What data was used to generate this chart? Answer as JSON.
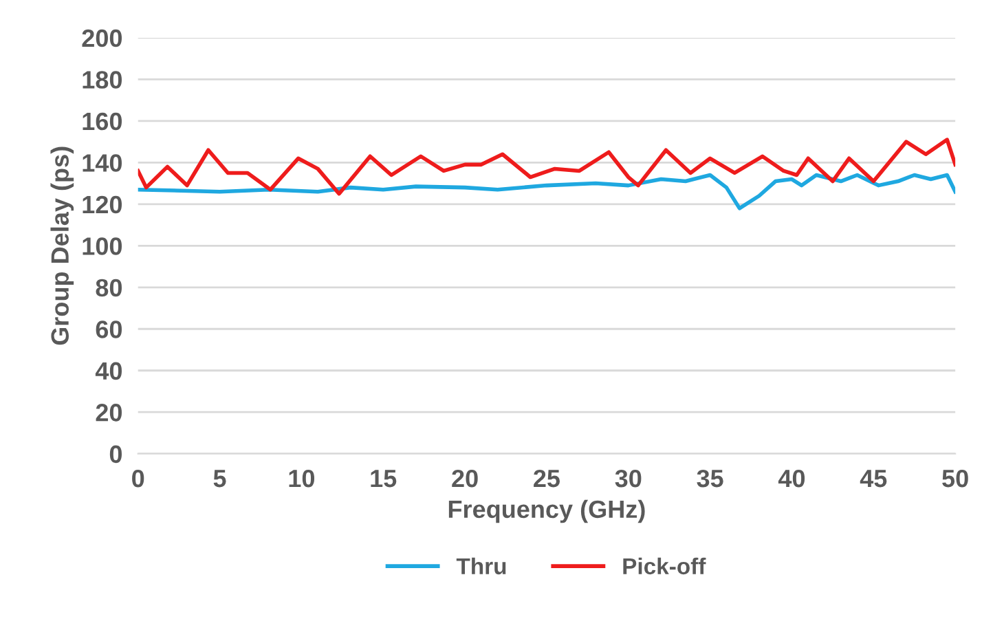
{
  "chart_data": {
    "type": "line",
    "xlabel": "Frequency (GHz)",
    "ylabel": "Group Delay (ps)",
    "xlim": [
      0,
      50
    ],
    "xticks": [
      0,
      5,
      10,
      15,
      20,
      25,
      30,
      35,
      40,
      45,
      50
    ],
    "ylim": [
      0,
      200
    ],
    "yticks": [
      0,
      20,
      40,
      60,
      80,
      100,
      120,
      140,
      160,
      180,
      200
    ],
    "grid": "y",
    "legend": "bottom",
    "marker": "none",
    "line_style": "solid",
    "series": [
      {
        "name": "Thru",
        "color": "#1fa8e0",
        "x": [
          0,
          5,
          8,
          11,
          13,
          15,
          17,
          20,
          22,
          25,
          28,
          30,
          32,
          33.5,
          35,
          36,
          36.8,
          38,
          39,
          40,
          40.6,
          41.5,
          43,
          44,
          45.3,
          46.5,
          47.5,
          48.5,
          49.5,
          50
        ],
        "values": [
          127,
          126,
          127,
          126,
          128,
          127,
          128.5,
          128,
          127,
          129,
          130,
          129,
          132,
          131,
          134,
          128,
          118,
          124,
          131,
          132,
          129,
          134,
          131,
          134,
          129,
          131,
          134,
          132,
          134,
          126
        ]
      },
      {
        "name": "Pick-off",
        "color": "#ee1c1c",
        "x": [
          0,
          0.5,
          1.8,
          3,
          4.3,
          5.5,
          6.7,
          8.1,
          9.8,
          11,
          12.3,
          14.2,
          15.5,
          17.3,
          18.7,
          20,
          21,
          22.3,
          24,
          25.5,
          27,
          28.8,
          30,
          30.6,
          32.3,
          33.8,
          35,
          36.5,
          38.2,
          39.5,
          40.3,
          41,
          42.5,
          43.5,
          45,
          47,
          48.2,
          49.5,
          50
        ],
        "values": [
          136,
          128,
          138,
          129,
          146,
          135,
          135,
          127,
          142,
          137,
          125,
          143,
          134,
          143,
          136,
          139,
          139,
          144,
          133,
          137,
          136,
          145,
          133,
          129,
          146,
          135,
          142,
          135,
          143,
          136,
          134,
          142,
          131,
          142,
          131,
          150,
          144,
          151,
          139
        ]
      }
    ]
  }
}
